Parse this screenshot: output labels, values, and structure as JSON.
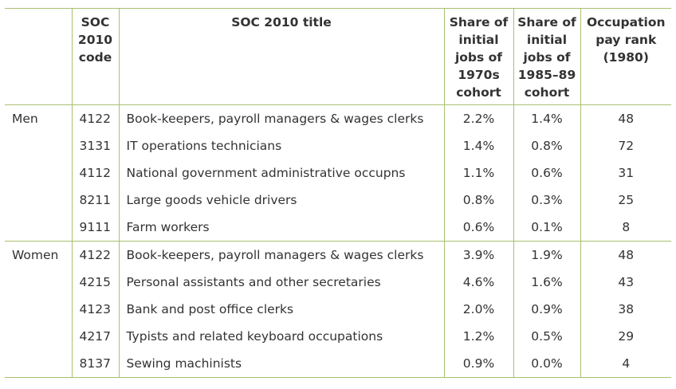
{
  "headers": {
    "group": "",
    "code": "SOC 2010 code",
    "title": "SOC 2010 title",
    "share_1970s": "Share of initial jobs of 1970s cohort",
    "share_1985_89": "Share of initial jobs of 1985–89 cohort",
    "pay_rank": "Occupation pay rank (1980)"
  },
  "groups": [
    {
      "label": "Men",
      "rows": [
        {
          "code": "4122",
          "title": "Book-keepers, payroll managers & wages clerks",
          "share_1970s": "2.2%",
          "share_1985_89": "1.4%",
          "pay_rank": "48"
        },
        {
          "code": "3131",
          "title": "IT operations technicians",
          "share_1970s": "1.4%",
          "share_1985_89": "0.8%",
          "pay_rank": "72"
        },
        {
          "code": "4112",
          "title": "National government administrative occupns",
          "share_1970s": "1.1%",
          "share_1985_89": "0.6%",
          "pay_rank": "31"
        },
        {
          "code": "8211",
          "title": "Large goods vehicle drivers",
          "share_1970s": "0.8%",
          "share_1985_89": "0.3%",
          "pay_rank": "25"
        },
        {
          "code": "9111",
          "title": "Farm workers",
          "share_1970s": "0.6%",
          "share_1985_89": "0.1%",
          "pay_rank": "8"
        }
      ]
    },
    {
      "label": "Women",
      "rows": [
        {
          "code": "4122",
          "title": "Book-keepers, payroll managers & wages clerks",
          "share_1970s": "3.9%",
          "share_1985_89": "1.9%",
          "pay_rank": "48"
        },
        {
          "code": "4215",
          "title": "Personal assistants and other secretaries",
          "share_1970s": "4.6%",
          "share_1985_89": "1.6%",
          "pay_rank": "43"
        },
        {
          "code": "4123",
          "title": "Bank and post office clerks",
          "share_1970s": "2.0%",
          "share_1985_89": "0.9%",
          "pay_rank": "38"
        },
        {
          "code": "4217",
          "title": "Typists and related keyboard occupations",
          "share_1970s": "1.2%",
          "share_1985_89": "0.5%",
          "pay_rank": "29"
        },
        {
          "code": "8137",
          "title": "Sewing machinists",
          "share_1970s": "0.9%",
          "share_1985_89": "0.0%",
          "pay_rank": "4"
        }
      ]
    }
  ],
  "colors": {
    "rule": "#a8c070",
    "text": "#333333"
  }
}
